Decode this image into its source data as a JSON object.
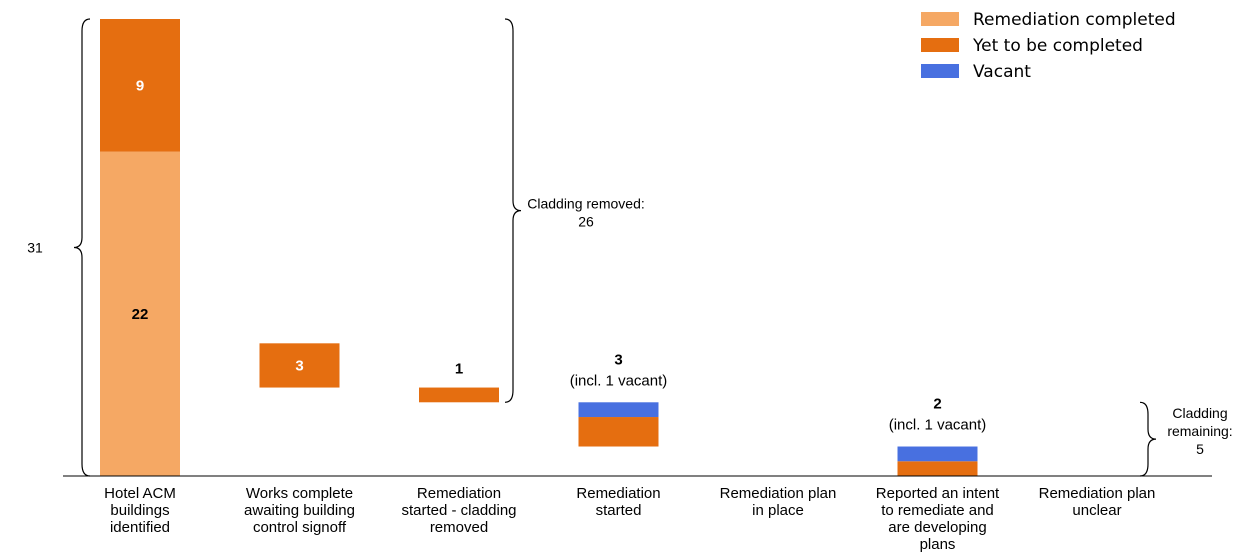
{
  "chart_data": {
    "type": "bar",
    "subtype": "waterfall-stacked",
    "title": "",
    "xlabel": "",
    "ylabel": "",
    "ylim": [
      0,
      31
    ],
    "grid": false,
    "legend_position": "top-right",
    "categories": [
      "Hotel ACM buildings identified",
      "Works complete awaiting building control signoff",
      "Remediation started - cladding removed",
      "Remediation started",
      "Remediation plan in place",
      "Reported an intent to remediate and are developing plans",
      "Remediation plan unclear"
    ],
    "category_lines": [
      [
        "Hotel ACM",
        "buildings",
        "identified"
      ],
      [
        "Works complete",
        "awaiting building",
        "control signoff"
      ],
      [
        "Remediation",
        "started - cladding",
        "removed"
      ],
      [
        "Remediation",
        "started"
      ],
      [
        "Remediation plan",
        "in place"
      ],
      [
        "Reported an intent",
        "to remediate and",
        "are developing",
        "plans"
      ],
      [
        "Remediation plan",
        "unclear"
      ]
    ],
    "series": [
      {
        "name": "Remediation completed",
        "color": "#f5a864",
        "values": [
          22,
          0,
          0,
          0,
          0,
          0,
          0
        ]
      },
      {
        "name": "Yet to be completed",
        "color": "#e56e10",
        "values": [
          9,
          3,
          1,
          2,
          0,
          1,
          0
        ]
      },
      {
        "name": "Vacant",
        "color": "#4870e0",
        "values": [
          0,
          0,
          0,
          1,
          0,
          1,
          0
        ]
      }
    ],
    "bases": [
      0,
      6,
      5,
      2,
      0,
      0,
      0
    ],
    "data_labels": [
      {
        "category": 0,
        "series": 0,
        "text": "22"
      },
      {
        "category": 0,
        "series": 1,
        "text": "9"
      },
      {
        "category": 1,
        "series": 1,
        "text": "3"
      },
      {
        "category": 2,
        "text": "1"
      },
      {
        "category": 3,
        "text": "3",
        "sub": "(incl. 1 vacant)"
      },
      {
        "category": 5,
        "text": "2",
        "sub": "(incl. 1 vacant)"
      }
    ],
    "annotations": {
      "total": {
        "text": "31",
        "from": 0,
        "to": 31
      },
      "removed": {
        "lines": [
          "Cladding removed:",
          "26"
        ],
        "from": 5,
        "to": 31
      },
      "remaining": {
        "lines": [
          "Cladding",
          "remaining:",
          "5"
        ],
        "from": 0,
        "to": 5
      }
    }
  }
}
